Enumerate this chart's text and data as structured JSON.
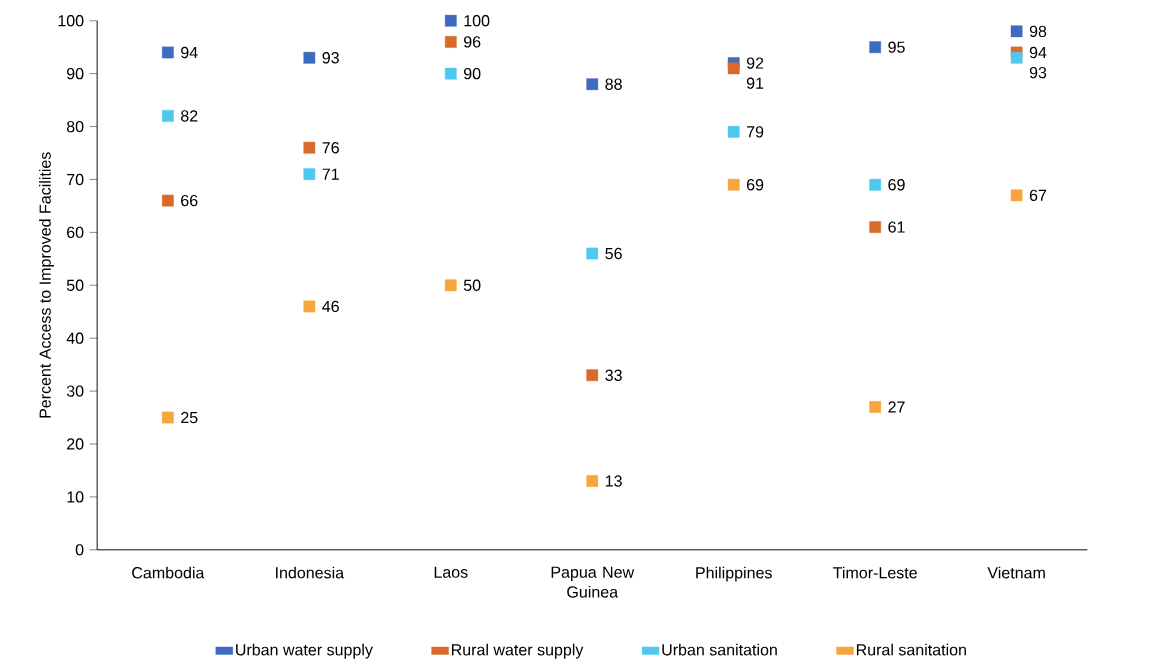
{
  "chart_data": {
    "type": "scatter",
    "ylabel": "Percent Access to Improved Facilities",
    "categories": [
      "Cambodia",
      "Indonesia",
      "Laos",
      "Papua New Guinea",
      "Philippines",
      "Timor-Leste",
      "Vietnam"
    ],
    "series": [
      {
        "name": "Urban water supply",
        "color": "#3e6bbd",
        "values": [
          94,
          93,
          100,
          88,
          92,
          95,
          98
        ]
      },
      {
        "name": "Rural water supply",
        "color": "#d96a2b",
        "values": [
          66,
          76,
          96,
          33,
          91,
          61,
          94
        ]
      },
      {
        "name": "Urban sanitation",
        "color": "#4fc8f0",
        "values": [
          82,
          71,
          90,
          56,
          79,
          69,
          93
        ]
      },
      {
        "name": "Rural sanitation",
        "color": "#f7a53c",
        "values": [
          25,
          46,
          50,
          13,
          69,
          27,
          67
        ]
      }
    ],
    "ylim": [
      0,
      100
    ],
    "yticks": [
      0,
      10,
      20,
      30,
      40,
      50,
      60,
      70,
      80,
      90,
      100
    ],
    "marker": "square",
    "data_labels": true,
    "legend": "bottom",
    "grid": false
  }
}
